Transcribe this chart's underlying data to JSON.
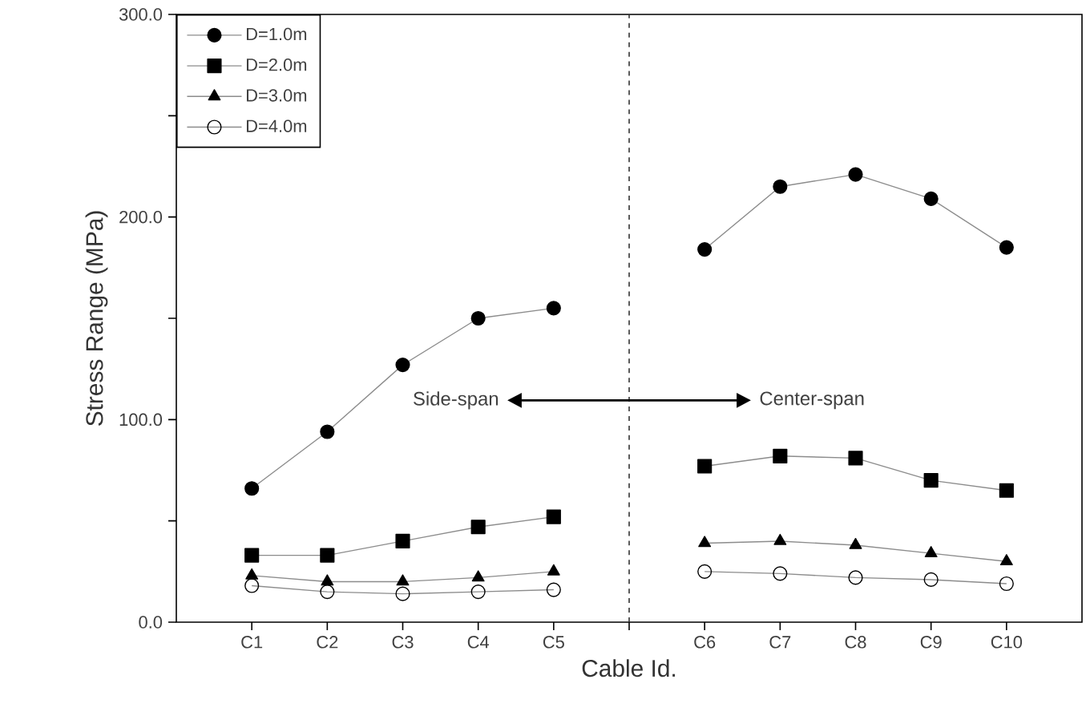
{
  "chart_data": {
    "type": "line",
    "xlabel": "Cable Id.",
    "ylabel": "Stress Range (MPa)",
    "categories": [
      "C1",
      "C2",
      "C3",
      "C4",
      "C5",
      null,
      "C6",
      "C7",
      "C8",
      "C9",
      "C10"
    ],
    "ylim": [
      0,
      300
    ],
    "yticks": [
      {
        "value": 0,
        "label": "0.0"
      },
      {
        "value": 50,
        "label": null
      },
      {
        "value": 100,
        "label": "100.0"
      },
      {
        "value": 150,
        "label": null
      },
      {
        "value": 200,
        "label": "200.0"
      },
      {
        "value": 250,
        "label": null
      },
      {
        "value": 300,
        "label": "300.0"
      }
    ],
    "series": [
      {
        "name": "D=1.0m",
        "color": "#000000",
        "marker": "circle",
        "values": [
          66,
          94,
          127,
          150,
          155,
          null,
          184,
          215,
          221,
          209,
          185
        ]
      },
      {
        "name": "D=2.0m",
        "color": "#000000",
        "marker": "square",
        "values": [
          33,
          33,
          40,
          47,
          52,
          null,
          77,
          82,
          81,
          70,
          65
        ]
      },
      {
        "name": "D=3.0m",
        "color": "#000000",
        "marker": "triangle",
        "values": [
          23,
          20,
          20,
          22,
          25,
          null,
          39,
          40,
          38,
          34,
          30
        ]
      },
      {
        "name": "D=4.0m",
        "color": "#000000",
        "marker": "open circle",
        "values": [
          18,
          15,
          14,
          15,
          16,
          null,
          25,
          24,
          22,
          21,
          19
        ]
      }
    ],
    "annotations": [
      "Side-span",
      "Center-span"
    ],
    "legend": "top left",
    "line_style": "solid"
  }
}
